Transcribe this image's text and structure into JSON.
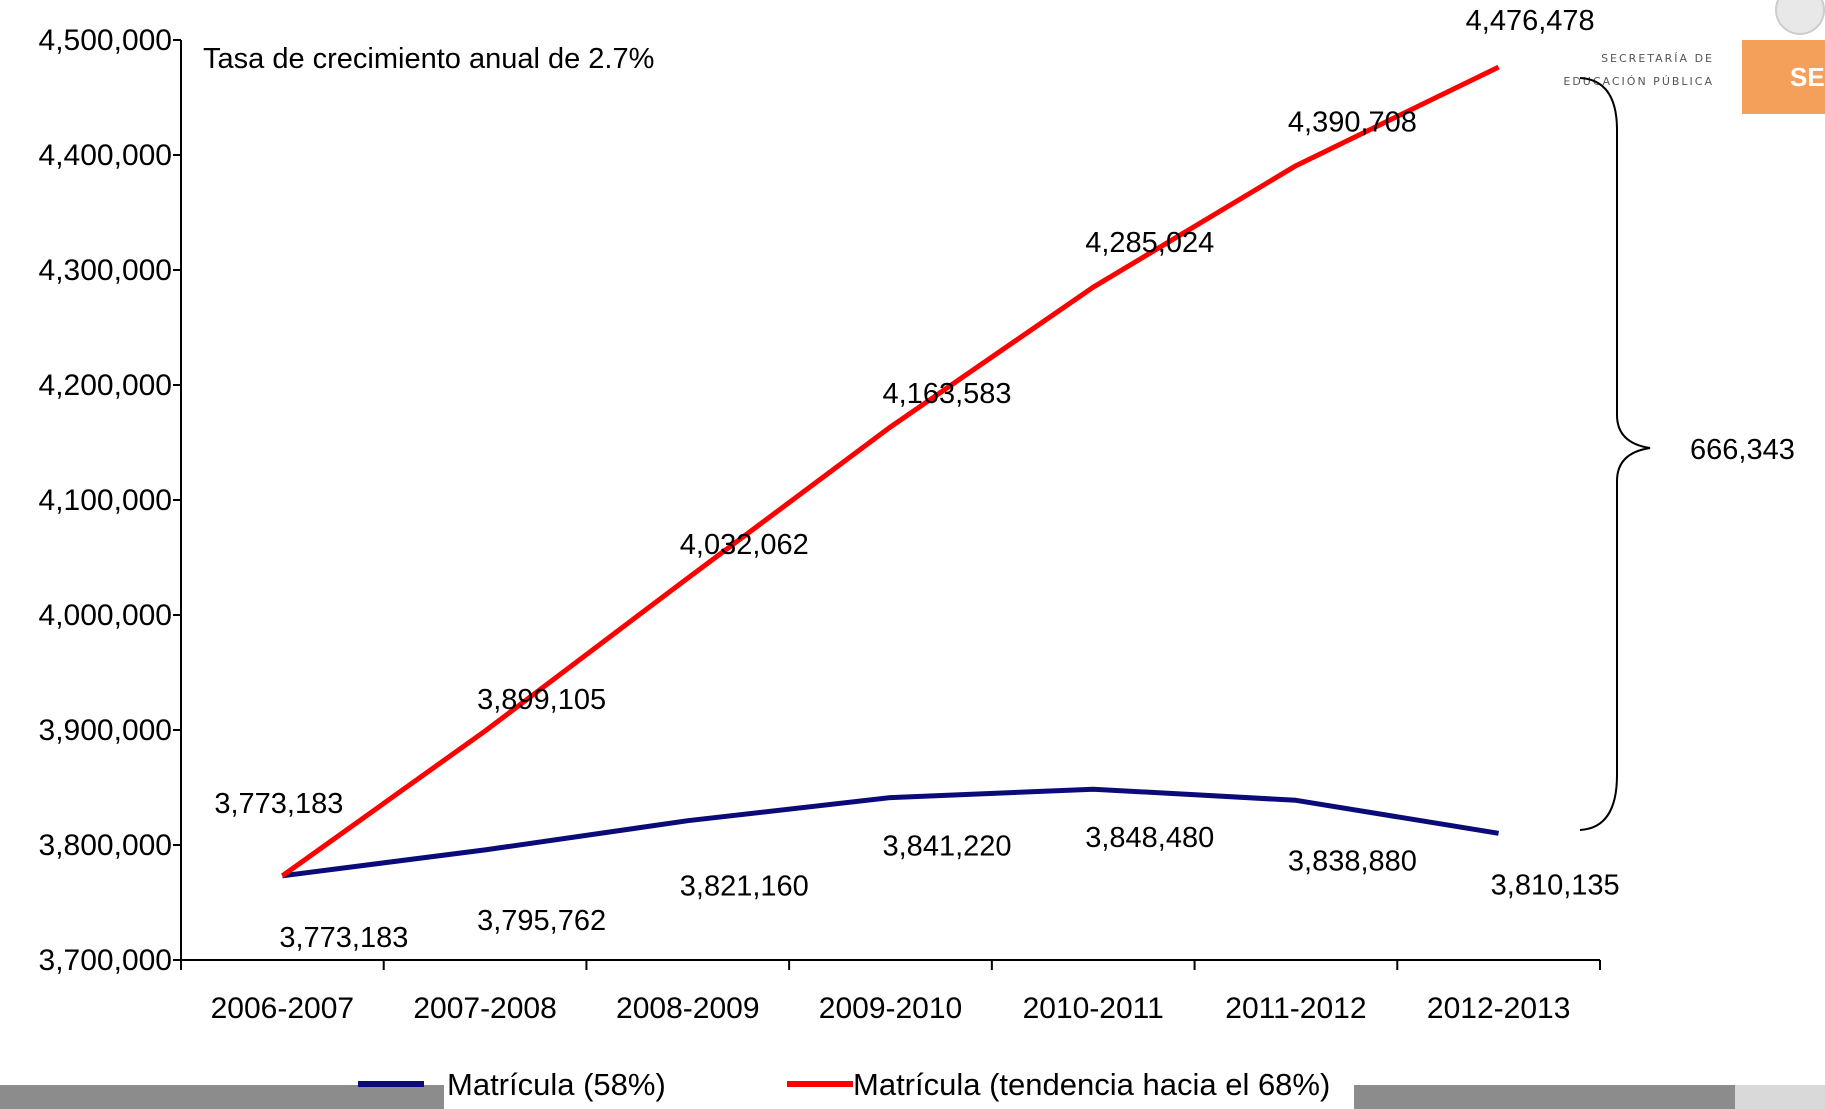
{
  "logo": {
    "line1": "SECRETARÍA DE",
    "line2": "EDUCACIÓN PÚBLICA",
    "abbr": "SE",
    "color": "#f5a05a"
  },
  "footer_bar_color": "#8c8c8c",
  "chart_data": {
    "type": "line",
    "title": "",
    "xlabel": "",
    "ylabel": "",
    "categories": [
      "2006-2007",
      "2007-2008",
      "2008-2009",
      "2009-2010",
      "2010-2011",
      "2011-2012",
      "2012-2013"
    ],
    "ylim": [
      3700000,
      4500000
    ],
    "yticks": [
      3700000,
      3800000,
      3900000,
      4000000,
      4100000,
      4200000,
      4300000,
      4400000,
      4500000
    ],
    "ytick_labels": [
      "3,700,000",
      "3,800,000",
      "3,900,000",
      "4,000,000",
      "4,100,000",
      "4,200,000",
      "4,300,000",
      "4,400,000",
      "4,500,000"
    ],
    "grid": false,
    "legend_position": "bottom",
    "series": [
      {
        "name": "Matrícula (58%)",
        "color": "#0a0a78",
        "values": [
          3773183,
          3795762,
          3821160,
          3841220,
          3848480,
          3838880,
          3810135
        ],
        "labels": [
          "3,773,183",
          "3,795,762",
          "3,821,160",
          "3,841,220",
          "3,848,480",
          "3,838,880",
          "3,810,135"
        ]
      },
      {
        "name": "Matrícula (tendencia hacia el 68%)",
        "color": "#ff0000",
        "values": [
          3773183,
          3899105,
          4032062,
          4163583,
          4285024,
          4390708,
          4476478
        ],
        "labels": [
          "3,773,183",
          "3,899,105",
          "4,032,062",
          "4,163,583",
          "4,285,024",
          "4,390,708",
          "4,476,478"
        ]
      }
    ],
    "annotations": {
      "growth_rate": "Tasa de crecimiento anual de 2.7%",
      "difference": "666,343"
    }
  }
}
